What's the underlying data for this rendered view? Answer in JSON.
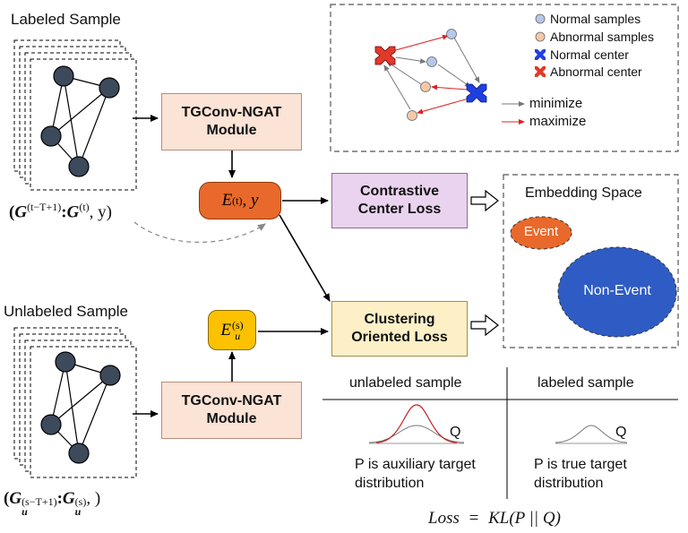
{
  "labeled_title": "Labeled Sample",
  "unlabeled_title": "Unlabeled Sample",
  "module_top": {
    "line1": "TGConv-NGAT",
    "line2": "Module"
  },
  "module_bottom": {
    "line1": "TGConv-NGAT",
    "line2": "Module"
  },
  "embed_labeled": {
    "sym": "E",
    "sup": "(t)",
    "rest": ", y"
  },
  "embed_unlabeled": {
    "sym": "E",
    "sup": "(s)",
    "sub": "u"
  },
  "labeled_input": {
    "open": "(",
    "G": "G",
    "sup1": "(t−T+1)",
    "colon": ":",
    "sup2": "(t)",
    "tail": ", y)"
  },
  "unlabeled_input": {
    "open": "(",
    "G": "G",
    "sub": "u",
    "sup1": "(s−T+1)",
    "colon": ":",
    "sup2": "(s)",
    "tail": ", )"
  },
  "contrastive_loss": {
    "line1": "Contrastive",
    "line2": "Center Loss"
  },
  "clustering_loss": {
    "line1": "Clustering",
    "line2": "Oriented Loss"
  },
  "legend": {
    "normal_samples": "Normal samples",
    "abnormal_samples": "Abnormal samples",
    "normal_center": "Normal center",
    "abnormal_center": "Abnormal center",
    "minimize": "minimize",
    "maximize": "maximize"
  },
  "embedding_space": {
    "title": "Embedding Space",
    "event": "Event",
    "non_event": "Non-Event"
  },
  "table": {
    "col1_header": "unlabeled sample",
    "col2_header": "labeled sample",
    "q1": "Q",
    "q2": "Q",
    "col1_text1": "P is auxiliary target",
    "col1_text2": "distribution",
    "col2_text1": "P is true target",
    "col2_text2": "distribution"
  },
  "formula": {
    "lhs": "Loss",
    "eq": "=",
    "rhs": "KL(P || Q)"
  },
  "colors": {
    "module_fill": "#fbe3d6",
    "embed_labeled_fill": "#e8692b",
    "embed_unlabeled_fill": "#fcc200",
    "contrastive_fill": "#ead3ee",
    "clustering_fill": "#fdf0c7",
    "event_fill": "#e8692b",
    "non_event_fill": "#2f5cc4",
    "node_fill": "#3d4a5c",
    "normal_sample": "#b4c8ea",
    "abnormal_sample": "#f5c9a8",
    "normal_center": "#1f3fe0",
    "abnormal_center": "#e23a2a"
  }
}
